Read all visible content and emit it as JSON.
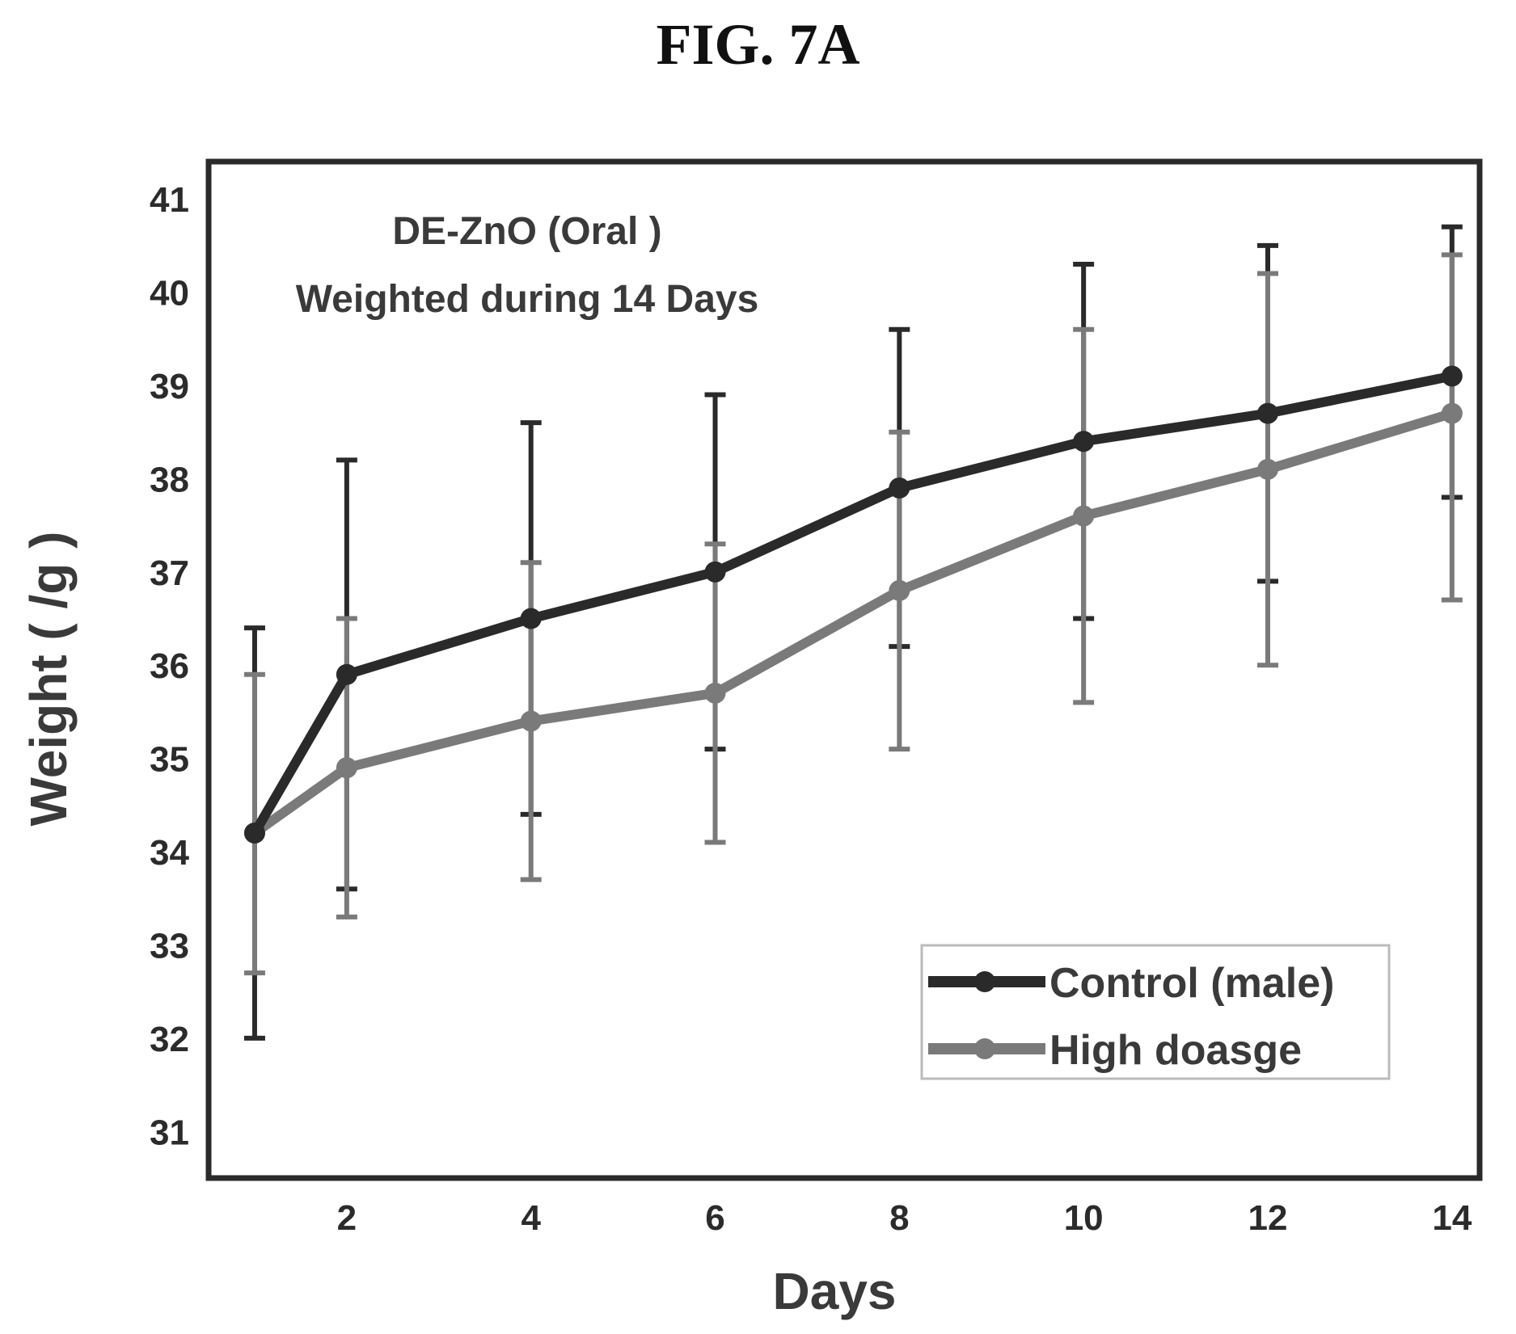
{
  "figure": {
    "title": "FIG. 7A"
  },
  "chart_data": {
    "type": "line",
    "annotation": [
      "DE-ZnO (Oral )",
      "Weighted during 14 Days"
    ],
    "xlabel": "Days",
    "ylabel": "Weight ( /g )",
    "xlim": [
      0.5,
      14.3
    ],
    "ylim": [
      30.5,
      41.4
    ],
    "x_ticks": [
      2,
      4,
      6,
      8,
      10,
      12,
      14
    ],
    "y_ticks": [
      31,
      32,
      33,
      34,
      35,
      36,
      37,
      38,
      39,
      40,
      41
    ],
    "grid": false,
    "legend_position": "bottom-right",
    "series": [
      {
        "name": "Control (male)",
        "color": "#2a2a2a",
        "x": [
          1,
          2,
          4,
          6,
          8,
          10,
          12,
          14
        ],
        "y": [
          34.2,
          35.9,
          36.5,
          37.0,
          37.9,
          38.4,
          38.7,
          39.1
        ],
        "yerr_low": [
          32.0,
          33.6,
          34.4,
          35.1,
          36.2,
          36.5,
          36.9,
          37.8
        ],
        "yerr_high": [
          36.4,
          38.2,
          38.6,
          38.9,
          39.6,
          40.3,
          40.5,
          40.7
        ]
      },
      {
        "name": "High doasge",
        "color": "#7a7a7a",
        "x": [
          1,
          2,
          4,
          6,
          8,
          10,
          12,
          14
        ],
        "y": [
          34.2,
          34.9,
          35.4,
          35.7,
          36.8,
          37.6,
          38.1,
          38.7
        ],
        "yerr_low": [
          32.7,
          33.3,
          33.7,
          34.1,
          35.1,
          35.6,
          36.0,
          36.7
        ],
        "yerr_high": [
          35.9,
          36.5,
          37.1,
          37.3,
          38.5,
          39.6,
          40.2,
          40.4
        ]
      }
    ]
  }
}
